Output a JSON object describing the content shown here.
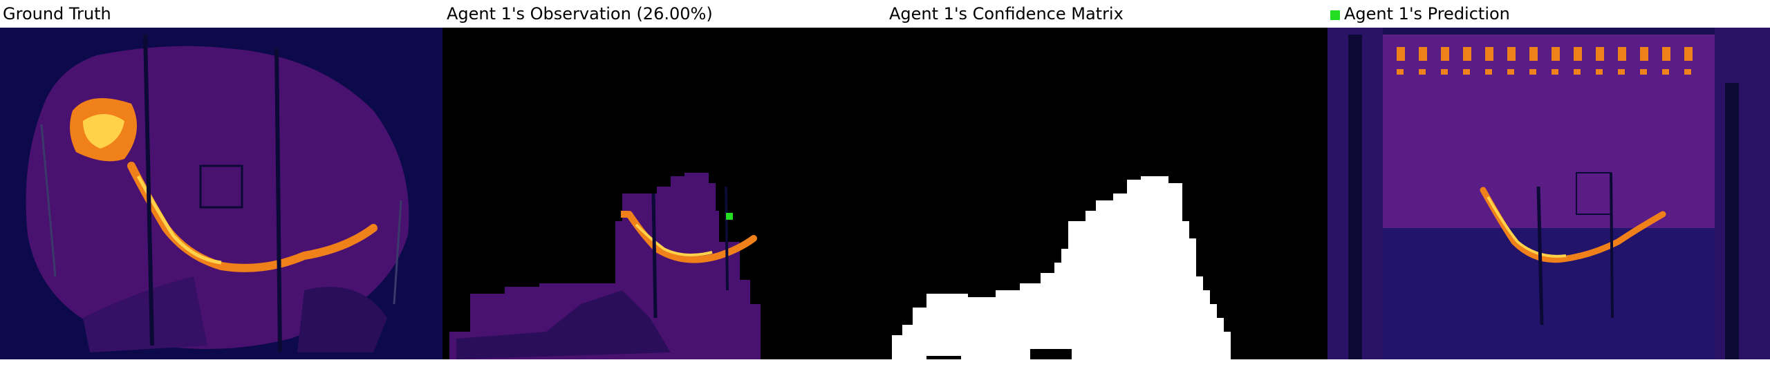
{
  "panels": [
    {
      "title": "Ground Truth"
    },
    {
      "title": "Agent 1's Observation (26.00%)"
    },
    {
      "title": "Agent 1's Confidence Matrix"
    },
    {
      "title": "Agent 1's Prediction"
    }
  ],
  "colors": {
    "background_dark": "#0c0a4a",
    "smoke_purple": "#4a1270",
    "hot_orange": "#f0801a",
    "hot_yellow": "#ffd24a",
    "mask_white": "#ffffff",
    "mask_black": "#000000",
    "agent_marker": "#22dd22"
  },
  "agent_marker_icon": "green-square-icon"
}
